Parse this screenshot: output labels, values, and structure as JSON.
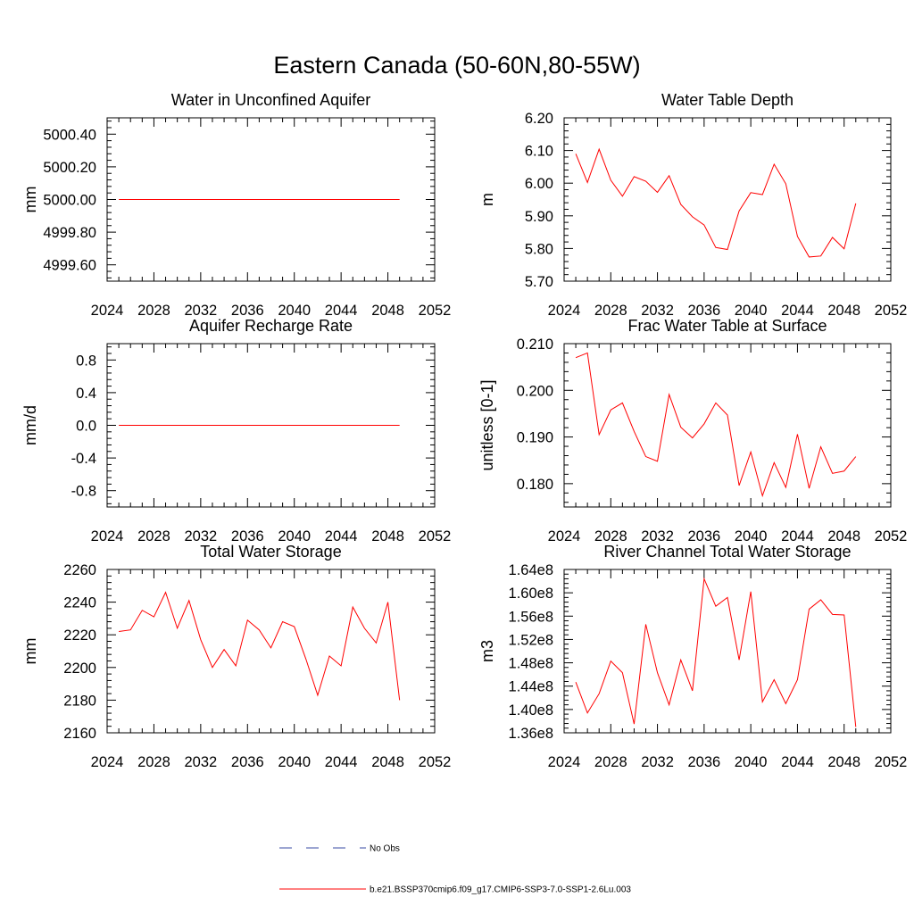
{
  "figure": {
    "title": "Eastern Canada (50-60N,80-55W)"
  },
  "legend": {
    "entries": [
      {
        "label": "No Obs",
        "color": "#3b4ea6",
        "style": "dashed"
      },
      {
        "label": "b.e21.BSSP370cmip6.f09_g17.CMIP6-SSP3-7.0-SSP1-2.6Lu.003",
        "color": "#ff0000",
        "style": "solid"
      }
    ]
  },
  "chart_data": [
    {
      "type": "line",
      "title": "Water in Unconfined Aquifer",
      "ylabel": "mm",
      "xlim": [
        2024,
        2052
      ],
      "ylim": [
        4999.5,
        5000.5
      ],
      "xticks": [
        2024,
        2028,
        2032,
        2036,
        2040,
        2044,
        2048,
        2052
      ],
      "yticks": [
        4999.6,
        4999.8,
        5000.0,
        5000.2,
        5000.4
      ],
      "ytick_labels": [
        "4999.60",
        "4999.80",
        "5000.00",
        "5000.20",
        "5000.40"
      ],
      "x": [
        2025,
        2026,
        2027,
        2028,
        2029,
        2030,
        2031,
        2032,
        2033,
        2034,
        2035,
        2036,
        2037,
        2038,
        2039,
        2040,
        2041,
        2042,
        2043,
        2044,
        2045,
        2046,
        2047,
        2048,
        2049
      ],
      "series": [
        {
          "color": "#ff0000",
          "values": [
            5000,
            5000,
            5000,
            5000,
            5000,
            5000,
            5000,
            5000,
            5000,
            5000,
            5000,
            5000,
            5000,
            5000,
            5000,
            5000,
            5000,
            5000,
            5000,
            5000,
            5000,
            5000,
            5000,
            5000,
            5000
          ]
        }
      ]
    },
    {
      "type": "line",
      "title": "Water Table Depth",
      "ylabel": "m",
      "xlim": [
        2024,
        2052
      ],
      "ylim": [
        5.7,
        6.2
      ],
      "xticks": [
        2024,
        2028,
        2032,
        2036,
        2040,
        2044,
        2048,
        2052
      ],
      "yticks": [
        5.7,
        5.8,
        5.9,
        6.0,
        6.1,
        6.2
      ],
      "ytick_labels": [
        "5.70",
        "5.80",
        "5.90",
        "6.00",
        "6.10",
        "6.20"
      ],
      "x": [
        2025,
        2026,
        2027,
        2028,
        2029,
        2030,
        2031,
        2032,
        2033,
        2034,
        2035,
        2036,
        2037,
        2038,
        2039,
        2040,
        2041,
        2042,
        2043,
        2044,
        2045,
        2046,
        2047,
        2048,
        2049
      ],
      "series": [
        {
          "color": "#ff0000",
          "values": [
            6.09,
            6.002,
            6.104,
            6.009,
            5.96,
            6.02,
            6.006,
            5.972,
            6.023,
            5.935,
            5.897,
            5.872,
            5.803,
            5.797,
            5.915,
            5.971,
            5.965,
            6.058,
            5.998,
            5.837,
            5.774,
            5.777,
            5.834,
            5.799,
            5.938
          ]
        }
      ]
    },
    {
      "type": "line",
      "title": "Aquifer Recharge Rate",
      "ylabel": "mm/d",
      "xlim": [
        2024,
        2052
      ],
      "ylim": [
        -1,
        1
      ],
      "xticks": [
        2024,
        2028,
        2032,
        2036,
        2040,
        2044,
        2048,
        2052
      ],
      "yticks": [
        -0.8,
        -0.4,
        0.0,
        0.4,
        0.8
      ],
      "ytick_labels": [
        "-0.8",
        "-0.4",
        "0.0",
        "0.4",
        "0.8"
      ],
      "x": [
        2025,
        2026,
        2027,
        2028,
        2029,
        2030,
        2031,
        2032,
        2033,
        2034,
        2035,
        2036,
        2037,
        2038,
        2039,
        2040,
        2041,
        2042,
        2043,
        2044,
        2045,
        2046,
        2047,
        2048,
        2049
      ],
      "series": [
        {
          "color": "#ff0000",
          "values": [
            0,
            0,
            0,
            0,
            0,
            0,
            0,
            0,
            0,
            0,
            0,
            0,
            0,
            0,
            0,
            0,
            0,
            0,
            0,
            0,
            0,
            0,
            0,
            0,
            0
          ]
        }
      ]
    },
    {
      "type": "line",
      "title": "Frac Water Table at Surface",
      "ylabel": "unitless [0-1]",
      "xlim": [
        2024,
        2052
      ],
      "ylim": [
        0.175,
        0.21
      ],
      "xticks": [
        2024,
        2028,
        2032,
        2036,
        2040,
        2044,
        2048,
        2052
      ],
      "yticks": [
        0.18,
        0.19,
        0.2,
        0.21
      ],
      "ytick_labels": [
        "0.180",
        "0.190",
        "0.200",
        "0.210"
      ],
      "x": [
        2025,
        2026,
        2027,
        2028,
        2029,
        2030,
        2031,
        2032,
        2033,
        2034,
        2035,
        2036,
        2037,
        2038,
        2039,
        2040,
        2041,
        2042,
        2043,
        2044,
        2045,
        2046,
        2047,
        2048,
        2049
      ],
      "series": [
        {
          "color": "#ff0000",
          "values": [
            0.207,
            0.208,
            0.1905,
            0.1958,
            0.1973,
            0.1912,
            0.1858,
            0.1848,
            0.1991,
            0.1921,
            0.1898,
            0.1928,
            0.1973,
            0.1947,
            0.1796,
            0.1868,
            0.1774,
            0.1845,
            0.1792,
            0.1906,
            0.179,
            0.1879,
            0.1822,
            0.1827,
            0.1858
          ]
        }
      ]
    },
    {
      "type": "line",
      "title": "Total Water Storage",
      "ylabel": "mm",
      "xlim": [
        2024,
        2052
      ],
      "ylim": [
        2160,
        2260
      ],
      "xticks": [
        2024,
        2028,
        2032,
        2036,
        2040,
        2044,
        2048,
        2052
      ],
      "yticks": [
        2160,
        2180,
        2200,
        2220,
        2240,
        2260
      ],
      "ytick_labels": [
        "2160",
        "2180",
        "2200",
        "2220",
        "2240",
        "2260"
      ],
      "x": [
        2025,
        2026,
        2027,
        2028,
        2029,
        2030,
        2031,
        2032,
        2033,
        2034,
        2035,
        2036,
        2037,
        2038,
        2039,
        2040,
        2041,
        2042,
        2043,
        2044,
        2045,
        2046,
        2047,
        2048,
        2049
      ],
      "series": [
        {
          "color": "#ff0000",
          "values": [
            2222,
            2223,
            2235,
            2231,
            2246,
            2224,
            2241,
            2217,
            2200,
            2211,
            2201,
            2229,
            2223,
            2212,
            2228,
            2225,
            2205,
            2183,
            2207,
            2201,
            2237,
            2224,
            2215,
            2240,
            2180
          ]
        }
      ]
    },
    {
      "type": "line",
      "title": "River Channel Total Water Storage",
      "ylabel": "m3",
      "xlim": [
        2024,
        2052
      ],
      "ylim": [
        136000000.0,
        164000000.0
      ],
      "xticks": [
        2024,
        2028,
        2032,
        2036,
        2040,
        2044,
        2048,
        2052
      ],
      "yticks": [
        136000000.0,
        140000000.0,
        144000000.0,
        148000000.0,
        152000000.0,
        156000000.0,
        160000000.0,
        164000000.0
      ],
      "ytick_labels": [
        "1.36e8",
        "1.40e8",
        "1.44e8",
        "1.48e8",
        "1.52e8",
        "1.56e8",
        "1.60e8",
        "1.64e8"
      ],
      "x": [
        2025,
        2026,
        2027,
        2028,
        2029,
        2030,
        2031,
        2032,
        2033,
        2034,
        2035,
        2036,
        2037,
        2038,
        2039,
        2040,
        2041,
        2042,
        2043,
        2044,
        2045,
        2046,
        2047,
        2048,
        2049
      ],
      "series": [
        {
          "color": "#ff0000",
          "values": [
            144700000.0,
            139400000.0,
            142700000.0,
            148300000.0,
            146300000.0,
            137500000.0,
            154600000.0,
            146300000.0,
            140800000.0,
            148500000.0,
            143200000.0,
            162400000.0,
            157700000.0,
            159200000.0,
            148500000.0,
            160200000.0,
            141300000.0,
            145100000.0,
            141000000.0,
            145100000.0,
            157200000.0,
            158800000.0,
            156300000.0,
            156200000.0,
            137000000.0
          ]
        }
      ]
    }
  ]
}
